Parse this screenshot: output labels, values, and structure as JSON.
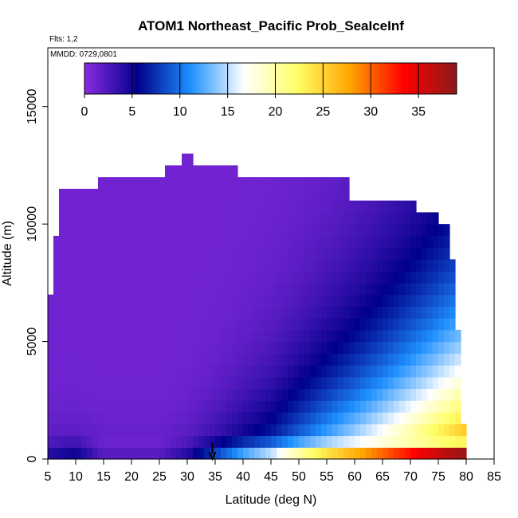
{
  "chart_data": {
    "type": "heatmap",
    "title": "ATOM1 Northeast_Pacific Prob_SeaIceInf",
    "subtitle_flights": "Flts: 1,2",
    "subtitle_dates": "MMDD: 0729,0801",
    "xlabel": "Latitude (deg N)",
    "ylabel": "Altitude (m)",
    "xlim": [
      5,
      85
    ],
    "ylim": [
      0,
      17500
    ],
    "xticks": [
      5,
      10,
      15,
      20,
      25,
      30,
      35,
      40,
      45,
      50,
      55,
      60,
      65,
      70,
      75,
      80,
      85
    ],
    "yticks": [
      0,
      5000,
      10000,
      15000
    ],
    "colorbar": {
      "range": [
        0,
        39
      ],
      "ticks": [
        0,
        5,
        10,
        15,
        20,
        25,
        30,
        35
      ],
      "colors": [
        "#8A2BE2",
        "#00008B",
        "#1E90FF",
        "#FFFFFF",
        "#FFFF66",
        "#FFA500",
        "#FF0000",
        "#8B1A1A"
      ]
    },
    "domain_top_altitude_by_latitude": [
      {
        "lat_from": 5,
        "lat_to": 6.5,
        "alt_top": 7000
      },
      {
        "lat_from": 6.5,
        "lat_to": 7.5,
        "alt_top": 9500
      },
      {
        "lat_from": 7.5,
        "lat_to": 14,
        "alt_top": 11500
      },
      {
        "lat_from": 14,
        "lat_to": 26,
        "alt_top": 12000
      },
      {
        "lat_from": 26,
        "lat_to": 29,
        "alt_top": 12500
      },
      {
        "lat_from": 29,
        "lat_to": 31,
        "alt_top": 13000
      },
      {
        "lat_from": 31,
        "lat_to": 39,
        "alt_top": 12500
      },
      {
        "lat_from": 39,
        "lat_to": 59,
        "alt_top": 12000
      },
      {
        "lat_from": 59,
        "lat_to": 71,
        "alt_top": 11000
      },
      {
        "lat_from": 71,
        "lat_to": 75,
        "alt_top": 10500
      },
      {
        "lat_from": 75,
        "lat_to": 77,
        "alt_top": 10000
      },
      {
        "lat_from": 77,
        "lat_to": 78,
        "alt_top": 8500
      },
      {
        "lat_from": 78,
        "lat_to": 79,
        "alt_top": 5500
      },
      {
        "lat_from": 79,
        "lat_to": 80,
        "alt_top": 1500
      }
    ],
    "surface_band_values": [
      {
        "lat": 5,
        "v": 4
      },
      {
        "lat": 10,
        "v": 5
      },
      {
        "lat": 15,
        "v": 2
      },
      {
        "lat": 20,
        "v": 2
      },
      {
        "lat": 25,
        "v": 2
      },
      {
        "lat": 30,
        "v": 4
      },
      {
        "lat": 35,
        "v": 8
      },
      {
        "lat": 40,
        "v": 12
      },
      {
        "lat": 45,
        "v": 15
      },
      {
        "lat": 50,
        "v": 20
      },
      {
        "lat": 55,
        "v": 24
      },
      {
        "lat": 60,
        "v": 27
      },
      {
        "lat": 65,
        "v": 30
      },
      {
        "lat": 70,
        "v": 33
      },
      {
        "lat": 75,
        "v": 36
      },
      {
        "lat": 79,
        "v": 38
      }
    ],
    "annotation": {
      "type": "arrow",
      "x": 34.5,
      "y_from": 700,
      "y_to": 0
    }
  }
}
